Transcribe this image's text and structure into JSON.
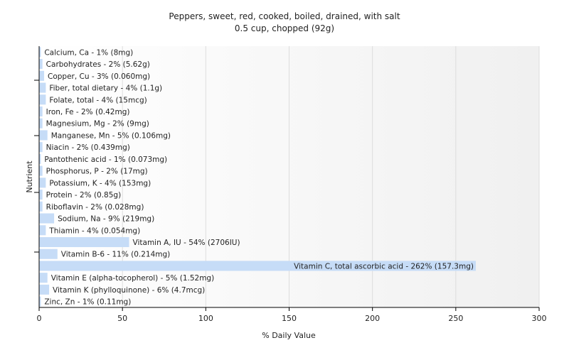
{
  "chart_data": {
    "type": "bar",
    "orientation": "horizontal",
    "title": "Peppers, sweet, red, cooked, boiled, drained, with salt",
    "subtitle": "0.5 cup, chopped (92g)",
    "xlabel": "% Daily Value",
    "ylabel": "Nutrient",
    "xlim": [
      0,
      300
    ],
    "xticks": [
      0,
      50,
      100,
      150,
      200,
      250,
      300
    ],
    "grid": true,
    "bar_color": "#c6dcf7",
    "categories": [
      "Calcium, Ca",
      "Carbohydrates",
      "Copper, Cu",
      "Fiber, total dietary",
      "Folate, total",
      "Iron, Fe",
      "Magnesium, Mg",
      "Manganese, Mn",
      "Niacin",
      "Pantothenic acid",
      "Phosphorus, P",
      "Potassium, K",
      "Protein",
      "Riboflavin",
      "Sodium, Na",
      "Thiamin",
      "Vitamin A, IU",
      "Vitamin B-6",
      "Vitamin C, total ascorbic acid",
      "Vitamin E (alpha-tocopherol)",
      "Vitamin K (phylloquinone)",
      "Zinc, Zn"
    ],
    "values": [
      1,
      2,
      3,
      4,
      4,
      2,
      2,
      5,
      2,
      1,
      2,
      4,
      2,
      2,
      9,
      4,
      54,
      11,
      262,
      5,
      6,
      1
    ],
    "labels": [
      "Calcium, Ca - 1% (8mg)",
      "Carbohydrates - 2% (5.62g)",
      "Copper, Cu - 3% (0.060mg)",
      "Fiber, total dietary - 4% (1.1g)",
      "Folate, total - 4% (15mcg)",
      "Iron, Fe - 2% (0.42mg)",
      "Magnesium, Mg - 2% (9mg)",
      "Manganese, Mn - 5% (0.106mg)",
      "Niacin - 2% (0.439mg)",
      "Pantothenic acid - 1% (0.073mg)",
      "Phosphorus, P - 2% (17mg)",
      "Potassium, K - 4% (153mg)",
      "Protein - 2% (0.85g)",
      "Riboflavin - 2% (0.028mg)",
      "Sodium, Na - 9% (219mg)",
      "Thiamin - 4% (0.054mg)",
      "Vitamin A, IU - 54% (2706IU)",
      "Vitamin B-6 - 11% (0.214mg)",
      "Vitamin C, total ascorbic acid - 262% (157.3mg)",
      "Vitamin E (alpha-tocopherol) - 5% (1.52mg)",
      "Vitamin K (phylloquinone) - 6% (4.7mcg)",
      "Zinc, Zn - 1% (0.11mg)"
    ]
  }
}
